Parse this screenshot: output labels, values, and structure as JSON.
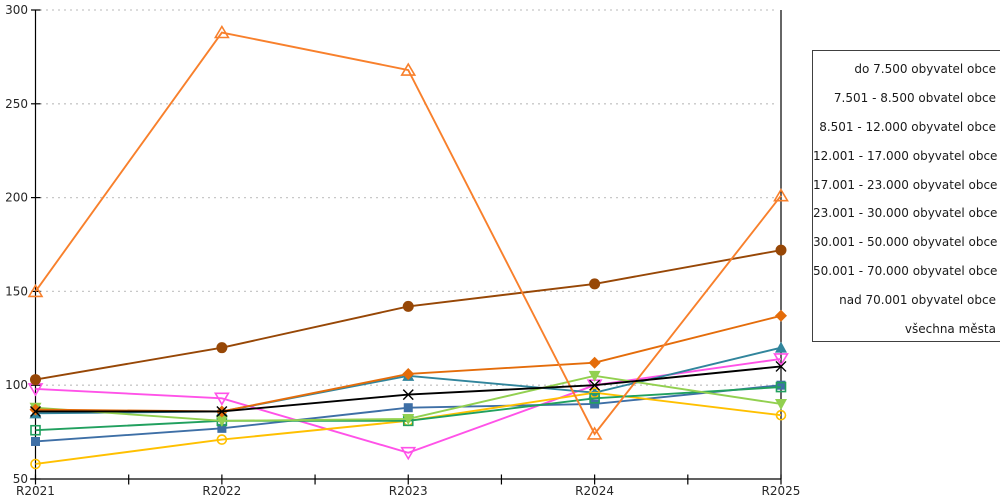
{
  "chart_data": {
    "type": "line",
    "title": "",
    "xlabel": "",
    "ylabel": "",
    "categories": [
      "R2021",
      "R2022",
      "R2023",
      "R2024",
      "R2025"
    ],
    "y_ticks": [
      50,
      100,
      150,
      200,
      250,
      300
    ],
    "ylim": [
      50,
      300
    ],
    "grid": "horizontal-dotted",
    "gridline_color": "#c8c8c8",
    "axis_color": "#000000",
    "legend_position": "right-box-clipped-at-image-edge",
    "series": [
      {
        "name": "do 7.500 obyvatel obce",
        "color": "#FFC000",
        "marker": "circle-open",
        "values": [
          58,
          71,
          81,
          96,
          84
        ]
      },
      {
        "name": "7.501 - 8.500 obvatel obce",
        "color": "#F8802C",
        "marker": "triangle-open",
        "values": [
          150,
          288,
          268,
          74,
          201
        ]
      },
      {
        "name": "8.501 - 12.000 obyvatel obce",
        "color": "#FF52E8",
        "marker": "triangle-down-open",
        "values": [
          98,
          93,
          64,
          100,
          114
        ]
      },
      {
        "name": "12.001 - 17.000 obyvatel obce",
        "color": "#21A05F",
        "marker": "square-open",
        "values": [
          76,
          81,
          81,
          93,
          99
        ]
      },
      {
        "name": "17.001 - 23.000 obyvatel obce",
        "color": "#92D050",
        "marker": "triangle-down-filled",
        "values": [
          88,
          81,
          82,
          105,
          90
        ]
      },
      {
        "name": "23.001 - 30.000 obyvatel obce",
        "color": "#3E6FA6",
        "marker": "square-filled",
        "values": [
          70,
          77,
          88,
          90,
          100
        ]
      },
      {
        "name": "30.001 - 50.000 obyvatel obce",
        "color": "#31859C",
        "marker": "triangle-filled",
        "values": [
          85,
          86,
          105,
          96,
          120
        ]
      },
      {
        "name": "50.001 - 70.000 obyvatel obce",
        "color": "#E46C0A",
        "marker": "diamond-filled",
        "values": [
          87,
          86,
          106,
          112,
          137
        ]
      },
      {
        "name": "nad 70.001 obyvatel obce",
        "color": "#974706",
        "marker": "circle-filled",
        "values": [
          103,
          120,
          142,
          154,
          172
        ]
      },
      {
        "name": "všechna města",
        "color": "#000000",
        "marker": "x-cross",
        "values": [
          86,
          86,
          95,
          100,
          110
        ]
      }
    ]
  }
}
